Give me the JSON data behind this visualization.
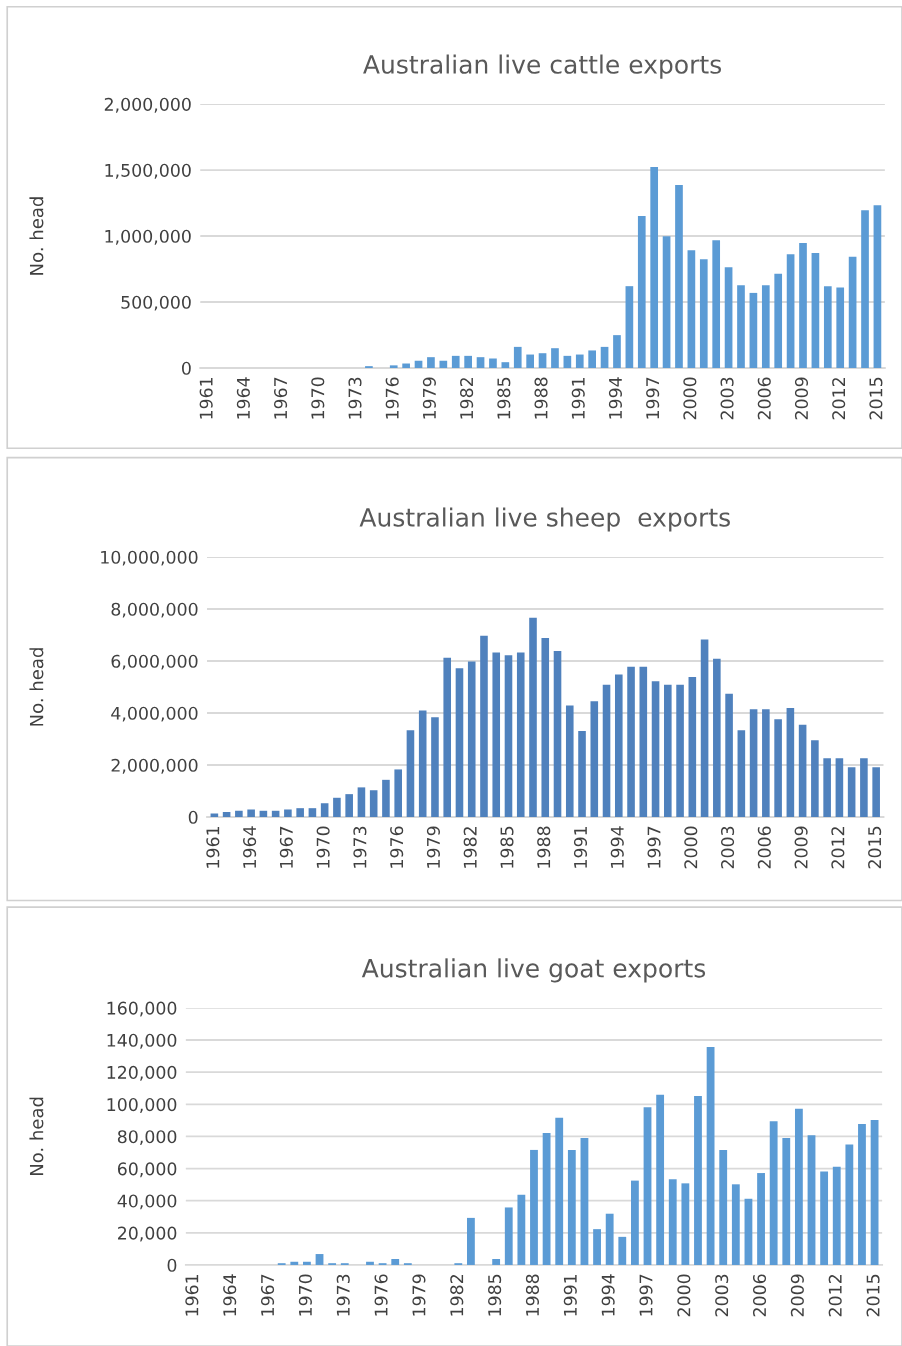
{
  "chart_data": [
    {
      "type": "bar",
      "title": "Australian live cattle exports",
      "ylabel": "No. head",
      "color": "#5b9bd5",
      "categories": [
        "1961",
        null,
        null,
        "1964",
        null,
        null,
        "1967",
        null,
        null,
        "1970",
        null,
        null,
        "1973",
        null,
        null,
        "1976",
        null,
        null,
        "1979",
        null,
        null,
        "1982",
        null,
        null,
        "1985",
        null,
        null,
        "1988",
        null,
        null,
        "1991",
        null,
        null,
        "1994",
        null,
        null,
        "1997",
        null,
        null,
        "2000",
        null,
        null,
        "2003",
        null,
        null,
        "2006",
        null,
        null,
        "2009",
        null,
        null,
        "2012",
        null,
        null,
        "2015"
      ],
      "values": [
        null,
        null,
        null,
        null,
        null,
        null,
        null,
        null,
        null,
        null,
        null,
        null,
        null,
        14000,
        null,
        20000,
        34000,
        55000,
        82000,
        55000,
        92000,
        92000,
        82000,
        72000,
        44000,
        160000,
        102000,
        112000,
        150000,
        92000,
        102000,
        133000,
        160000,
        249000,
        620000,
        1152000,
        1523000,
        998000,
        1387000,
        893000,
        824000,
        968000,
        763000,
        627000,
        569000,
        627000,
        715000,
        862000,
        947000,
        872000,
        620000,
        610000,
        842000,
        1196000,
        1233000
      ],
      "ylim": [
        0,
        2000000
      ],
      "yticks": [
        {
          "value": 0,
          "label": "0"
        },
        {
          "value": 500000,
          "label": "500,000"
        },
        {
          "value": 1000000,
          "label": "1,000,000"
        },
        {
          "value": 1500000,
          "label": "1,500,000"
        },
        {
          "value": 2000000,
          "label": "2,000,000"
        }
      ],
      "grid": "y",
      "legend": false
    },
    {
      "type": "bar",
      "title": "Australian live sheep  exports",
      "ylabel": "No. head",
      "color": "#4f81bd",
      "categories": [
        "1961",
        null,
        null,
        "1964",
        null,
        null,
        "1967",
        null,
        null,
        "1970",
        null,
        null,
        "1973",
        null,
        null,
        "1976",
        null,
        null,
        "1979",
        null,
        null,
        "1982",
        null,
        null,
        "1985",
        null,
        null,
        "1988",
        null,
        null,
        "1991",
        null,
        null,
        "1994",
        null,
        null,
        "1997",
        null,
        null,
        "2000",
        null,
        null,
        "2003",
        null,
        null,
        "2006",
        null,
        null,
        "2009",
        null,
        null,
        "2012",
        null,
        null,
        "2015"
      ],
      "values": [
        140000,
        190000,
        240000,
        290000,
        240000,
        240000,
        290000,
        340000,
        340000,
        530000,
        740000,
        880000,
        1140000,
        1030000,
        1430000,
        1830000,
        3340000,
        4100000,
        3840000,
        6120000,
        5720000,
        5980000,
        6970000,
        6330000,
        6220000,
        6330000,
        7660000,
        6880000,
        6380000,
        4290000,
        3310000,
        4450000,
        5090000,
        5480000,
        5780000,
        5780000,
        5220000,
        5090000,
        5090000,
        5380000,
        6830000,
        6090000,
        4740000,
        3340000,
        4140000,
        4140000,
        3760000,
        4190000,
        3550000,
        2950000,
        2260000,
        2260000,
        1910000,
        2260000,
        1910000
      ],
      "ylim": [
        0,
        10000000
      ],
      "yticks": [
        {
          "value": 0,
          "label": "0"
        },
        {
          "value": 2000000,
          "label": "2,000,000"
        },
        {
          "value": 4000000,
          "label": "4,000,000"
        },
        {
          "value": 6000000,
          "label": "6,000,000"
        },
        {
          "value": 8000000,
          "label": "8,000,000"
        },
        {
          "value": 10000000,
          "label": "10,000,000"
        }
      ],
      "grid": "y",
      "legend": false
    },
    {
      "type": "bar",
      "title": "Australian live goat exports",
      "ylabel": "No. head",
      "color": "#5b9bd5",
      "categories": [
        "1961",
        null,
        null,
        "1964",
        null,
        null,
        "1967",
        null,
        null,
        "1970",
        null,
        null,
        "1973",
        null,
        null,
        "1976",
        null,
        null,
        "1979",
        null,
        null,
        "1982",
        null,
        null,
        "1985",
        null,
        null,
        "1988",
        null,
        null,
        "1991",
        null,
        null,
        "1994",
        null,
        null,
        "1997",
        null,
        null,
        "2000",
        null,
        null,
        "2003",
        null,
        null,
        "2006",
        null,
        null,
        "2009",
        null,
        null,
        "2012",
        null,
        null,
        "2015"
      ],
      "values": [
        null,
        null,
        null,
        null,
        null,
        null,
        null,
        1100,
        2000,
        2000,
        6800,
        1100,
        1100,
        null,
        2000,
        1100,
        3700,
        1100,
        null,
        null,
        null,
        1100,
        29300,
        null,
        3700,
        35800,
        43700,
        71600,
        82100,
        91600,
        71600,
        79000,
        22300,
        31900,
        17500,
        52500,
        98100,
        106000,
        53300,
        50800,
        105200,
        135600,
        71600,
        50200,
        41200,
        57200,
        89400,
        79000,
        97300,
        80700,
        58100,
        61200,
        75000,
        87700,
        90200
      ],
      "ylim": [
        0,
        160000
      ],
      "yticks": [
        {
          "value": 0,
          "label": "0"
        },
        {
          "value": 20000,
          "label": "20,000"
        },
        {
          "value": 40000,
          "label": "40,000"
        },
        {
          "value": 60000,
          "label": "60,000"
        },
        {
          "value": 80000,
          "label": "80,000"
        },
        {
          "value": 100000,
          "label": "100,000"
        },
        {
          "value": 120000,
          "label": "120,000"
        },
        {
          "value": 140000,
          "label": "140,000"
        },
        {
          "value": 160000,
          "label": "160,000"
        }
      ],
      "grid": "y",
      "legend": false
    }
  ]
}
